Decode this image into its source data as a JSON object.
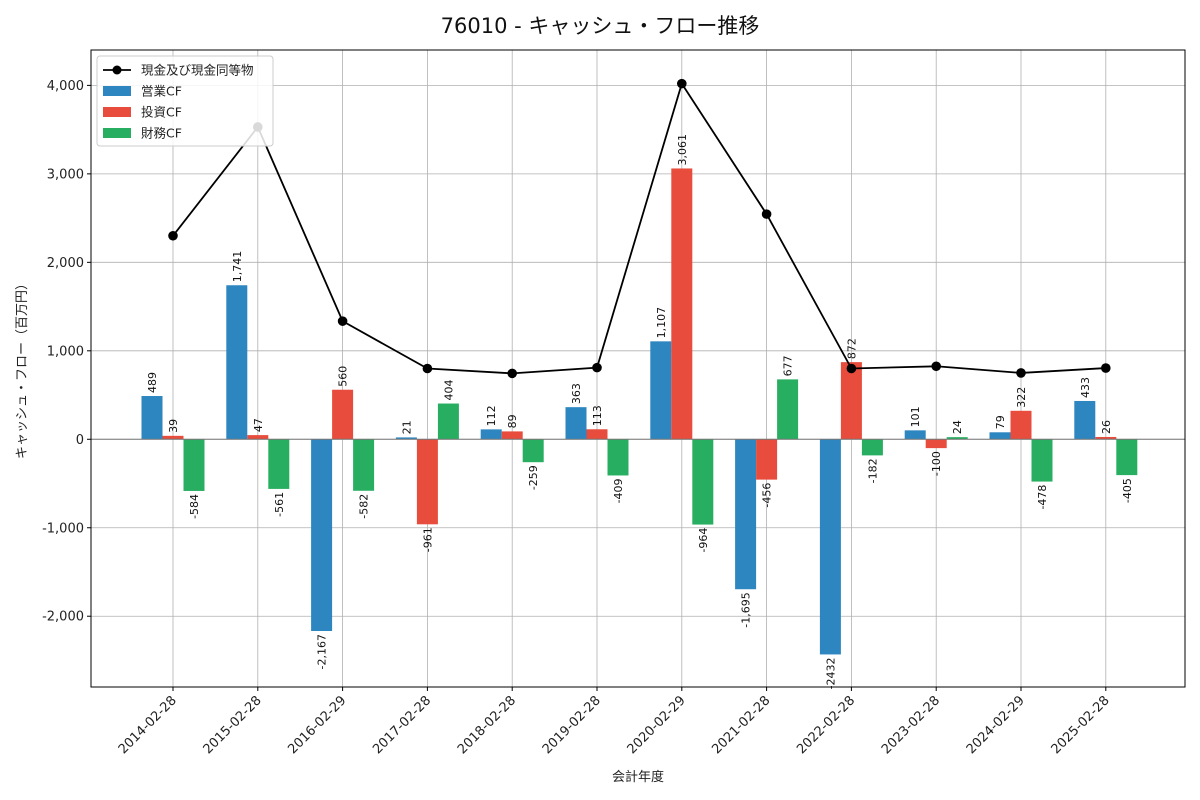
{
  "chart_data": {
    "type": "bar",
    "title": "76010 - キャッシュ・フロー推移",
    "xlabel": "会計年度",
    "ylabel": "キャッシュ・フロー（百万円）",
    "ylim": [
      -2800,
      4400
    ],
    "yticks": [
      -2000,
      -1000,
      0,
      1000,
      2000,
      3000,
      4000
    ],
    "ytick_labels": [
      "-2,000",
      "-1,000",
      "0",
      "1,000",
      "2,000",
      "3,000",
      "4,000"
    ],
    "grid": true,
    "legend_position": "top-left",
    "categories": [
      "2014-02-28",
      "2015-02-28",
      "2016-02-29",
      "2017-02-28",
      "2018-02-28",
      "2019-02-28",
      "2020-02-29",
      "2021-02-28",
      "2022-02-28",
      "2023-02-28",
      "2024-02-29",
      "2025-02-28"
    ],
    "series": [
      {
        "name": "営業CF",
        "kind": "bar",
        "color": "#2e86c1",
        "values": [
          489,
          1741,
          -2167,
          21,
          112,
          363,
          1107,
          -1695,
          -2432,
          101,
          79,
          433
        ],
        "labels": [
          "489",
          "1,741",
          "-2,167",
          "21",
          "112",
          "363",
          "1,107",
          "-1,695",
          "-2432",
          "101",
          "79",
          "433"
        ]
      },
      {
        "name": "投資CF",
        "kind": "bar",
        "color": "#e74c3c",
        "values": [
          39,
          47,
          560,
          -961,
          89,
          113,
          3061,
          -456,
          872,
          -100,
          322,
          26
        ],
        "labels": [
          "39",
          "47",
          "560",
          "-961",
          "89",
          "113",
          "3,061",
          "-456",
          "872",
          "-100",
          "322",
          "26"
        ]
      },
      {
        "name": "財務CF",
        "kind": "bar",
        "color": "#27ae60",
        "values": [
          -584,
          -561,
          -582,
          404,
          -259,
          -409,
          -964,
          677,
          -182,
          24,
          -478,
          -405
        ],
        "labels": [
          "-584",
          "-561",
          "-582",
          "404",
          "-259",
          "-409",
          "-964",
          "677",
          "-182",
          "24",
          "-478",
          "-405"
        ]
      },
      {
        "name": "現金及び現金同等物",
        "kind": "line",
        "color": "#000000",
        "values": [
          2300,
          3530,
          1335,
          800,
          745,
          810,
          4020,
          2545,
          800,
          825,
          750,
          805
        ]
      }
    ]
  }
}
